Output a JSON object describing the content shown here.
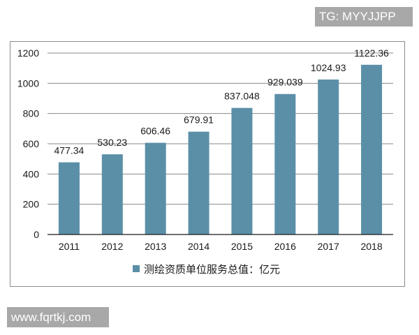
{
  "watermarks": {
    "top": "TG: MYYJJPP",
    "bottom": "www.fqrtkj.com"
  },
  "legend": {
    "label": "测绘资质单位服务总值：亿元",
    "color": "#5b8fa8"
  },
  "chart_data": {
    "type": "bar",
    "title": "",
    "xlabel": "",
    "ylabel": "",
    "categories": [
      "2011",
      "2012",
      "2013",
      "2014",
      "2015",
      "2016",
      "2017",
      "2018"
    ],
    "series": [
      {
        "name": "测绘资质单位服务总值：亿元",
        "values": [
          477.34,
          530.23,
          606.46,
          679.91,
          837.048,
          929.039,
          1024.93,
          1122.36
        ],
        "labels": [
          "477.34",
          "530.23",
          "606.46",
          "679.91",
          "837.048",
          "929.039",
          "1024.93",
          "1122.36"
        ],
        "color": "#5b8fa8"
      }
    ],
    "ylim": [
      0,
      1200
    ],
    "yticks": [
      "0",
      "200",
      "400",
      "600",
      "800",
      "1000",
      "1200"
    ],
    "grid": true,
    "legend_position": "bottom"
  }
}
